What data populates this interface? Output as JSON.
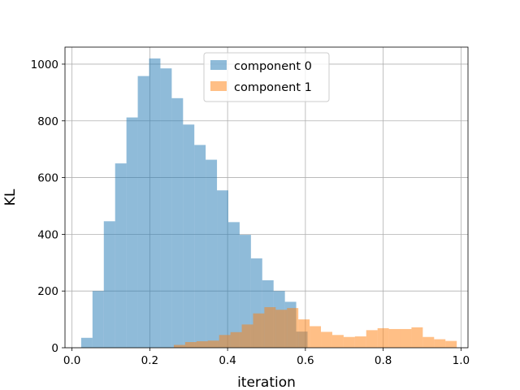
{
  "chart_data": {
    "type": "histogram",
    "title": "",
    "xlabel": "iteration",
    "ylabel": "KL",
    "xlim": [
      -0.018,
      1.018
    ],
    "ylim": [
      0,
      1060
    ],
    "xticks": [
      0.0,
      0.2,
      0.4,
      0.6,
      0.8,
      1.0
    ],
    "xtick_labels": [
      "0.0",
      "0.2",
      "0.4",
      "0.6",
      "0.8",
      "1.0"
    ],
    "yticks": [
      0,
      200,
      400,
      600,
      800,
      1000
    ],
    "ytick_labels": [
      "0",
      "200",
      "400",
      "600",
      "800",
      "1000"
    ],
    "grid": true,
    "legend_position": "upper center",
    "series": [
      {
        "name": "component 0",
        "color": "#1f77b4",
        "alpha": 0.5,
        "bins": [
          [
            0.0236,
            0.0527,
            35
          ],
          [
            0.0527,
            0.0818,
            200
          ],
          [
            0.0818,
            0.1109,
            446
          ],
          [
            0.1109,
            0.14,
            650
          ],
          [
            0.14,
            0.1691,
            812
          ],
          [
            0.1691,
            0.1982,
            958
          ],
          [
            0.1982,
            0.2273,
            1020
          ],
          [
            0.2273,
            0.2564,
            985
          ],
          [
            0.2564,
            0.2855,
            880
          ],
          [
            0.2855,
            0.3145,
            787
          ],
          [
            0.3145,
            0.3436,
            715
          ],
          [
            0.3436,
            0.3727,
            663
          ],
          [
            0.3727,
            0.4018,
            555
          ],
          [
            0.4018,
            0.4309,
            443
          ],
          [
            0.4309,
            0.46,
            398
          ],
          [
            0.46,
            0.4891,
            315
          ],
          [
            0.4891,
            0.5182,
            238
          ],
          [
            0.5182,
            0.5473,
            200
          ],
          [
            0.5473,
            0.5764,
            162
          ],
          [
            0.5764,
            0.6055,
            57
          ]
        ]
      },
      {
        "name": "component 1",
        "color": "#ff7f0e",
        "alpha": 0.5,
        "bins": [
          [
            0.2618,
            0.2909,
            10
          ],
          [
            0.2909,
            0.32,
            20
          ],
          [
            0.32,
            0.3491,
            23
          ],
          [
            0.3491,
            0.3782,
            25
          ],
          [
            0.3782,
            0.4073,
            45
          ],
          [
            0.4073,
            0.4364,
            55
          ],
          [
            0.4364,
            0.4655,
            82
          ],
          [
            0.4655,
            0.4945,
            121
          ],
          [
            0.4945,
            0.5236,
            143
          ],
          [
            0.5236,
            0.5527,
            134
          ],
          [
            0.5527,
            0.5818,
            140
          ],
          [
            0.5818,
            0.6109,
            100
          ],
          [
            0.6109,
            0.64,
            76
          ],
          [
            0.64,
            0.6691,
            56
          ],
          [
            0.6691,
            0.6982,
            45
          ],
          [
            0.6982,
            0.7273,
            38
          ],
          [
            0.7273,
            0.7564,
            40
          ],
          [
            0.7564,
            0.7855,
            62
          ],
          [
            0.7855,
            0.8145,
            69
          ],
          [
            0.8145,
            0.8436,
            66
          ],
          [
            0.8436,
            0.8727,
            66
          ],
          [
            0.8727,
            0.9018,
            72
          ],
          [
            0.9018,
            0.9309,
            38
          ],
          [
            0.9309,
            0.96,
            30
          ],
          [
            0.96,
            0.9891,
            24
          ]
        ]
      }
    ]
  }
}
